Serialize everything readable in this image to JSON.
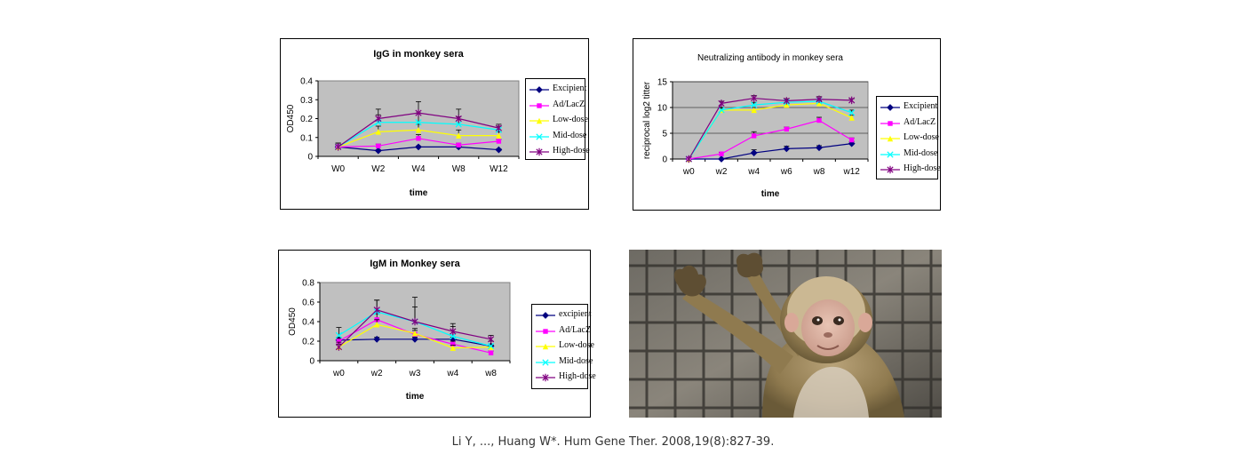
{
  "chart_data": [
    {
      "id": "igg",
      "type": "line",
      "title": "IgG in monkey sera",
      "xlabel": "time",
      "ylabel": "OD450",
      "categories": [
        "W0",
        "W2",
        "W4",
        "W8",
        "W12"
      ],
      "ylim": [
        0,
        0.4
      ],
      "yticks": [
        "0",
        "0.1",
        "0.2",
        "0.3",
        "0.4"
      ],
      "grid": false,
      "legend_position": "right",
      "series": [
        {
          "name": "Excipient",
          "color": "#000080",
          "marker": "diamond",
          "values": [
            0.05,
            0.03,
            0.05,
            0.05,
            0.035
          ],
          "errors": [
            0.01,
            0.005,
            0.005,
            0.005,
            0.005
          ]
        },
        {
          "name": "Ad/LacZ",
          "color": "#ff00ff",
          "marker": "square",
          "values": [
            0.05,
            0.055,
            0.095,
            0.06,
            0.08
          ],
          "errors": [
            0.01,
            0.01,
            0.02,
            0.01,
            0.01
          ]
        },
        {
          "name": "Low-dose",
          "color": "#ffff00",
          "marker": "triangle",
          "values": [
            0.05,
            0.13,
            0.14,
            0.11,
            0.11
          ],
          "errors": [
            0.02,
            0.03,
            0.03,
            0.03,
            0.02
          ]
        },
        {
          "name": "Mid-dose",
          "color": "#00ffff",
          "marker": "x",
          "values": [
            0.05,
            0.18,
            0.18,
            0.17,
            0.14
          ],
          "errors": [
            0.02,
            0.04,
            0.05,
            0.04,
            0.02
          ]
        },
        {
          "name": "High-dose",
          "color": "#800080",
          "marker": "star",
          "values": [
            0.05,
            0.2,
            0.23,
            0.2,
            0.15
          ],
          "errors": [
            0.02,
            0.05,
            0.06,
            0.05,
            0.02
          ]
        }
      ]
    },
    {
      "id": "nab",
      "type": "line",
      "title": "Neutralizing antibody in monkey sera",
      "xlabel": "time",
      "ylabel": "reciprocal log2 titter",
      "categories": [
        "w0",
        "w2",
        "w4",
        "w6",
        "w8",
        "w12"
      ],
      "ylim": [
        0,
        15
      ],
      "yticks": [
        "0",
        "5",
        "10",
        "15"
      ],
      "grid": true,
      "legend_position": "right",
      "series": [
        {
          "name": "Excipient",
          "color": "#000080",
          "marker": "diamond",
          "values": [
            0,
            0,
            1.2,
            2,
            2.2,
            3
          ],
          "errors": [
            0,
            0,
            0.6,
            0.5,
            0.4,
            0.4
          ]
        },
        {
          "name": "Ad/LacZ",
          "color": "#ff00ff",
          "marker": "square",
          "values": [
            0,
            1,
            4.5,
            5.8,
            7.5,
            3.7
          ],
          "errors": [
            0,
            0.3,
            0.8,
            0.4,
            0.6,
            0.4
          ]
        },
        {
          "name": "Low-dose",
          "color": "#ffff00",
          "marker": "triangle",
          "values": [
            0,
            9.5,
            9.5,
            10.5,
            10.8,
            8
          ],
          "errors": [
            0,
            0.4,
            0.5,
            0.4,
            0.5,
            0.5
          ]
        },
        {
          "name": "Mid-dose",
          "color": "#00ffff",
          "marker": "x",
          "values": [
            0,
            9.5,
            10.5,
            11,
            11.2,
            9
          ],
          "errors": [
            0,
            0.5,
            0.5,
            0.4,
            0.4,
            0.5
          ]
        },
        {
          "name": "High-dose",
          "color": "#800080",
          "marker": "star",
          "values": [
            0,
            10.8,
            11.8,
            11.3,
            11.6,
            11.4
          ],
          "errors": [
            0,
            0.4,
            0.5,
            0.4,
            0.5,
            0.3
          ]
        }
      ]
    },
    {
      "id": "igm",
      "type": "line",
      "title": "IgM in Monkey sera",
      "xlabel": "time",
      "ylabel": "OD450",
      "categories": [
        "w0",
        "w2",
        "w3",
        "w4",
        "w8"
      ],
      "ylim": [
        0,
        0.8
      ],
      "yticks": [
        "0",
        "0.2",
        "0.4",
        "0.6",
        "0.8"
      ],
      "grid": false,
      "legend_position": "right",
      "series": [
        {
          "name": "excipient",
          "color": "#000080",
          "marker": "diamond",
          "values": [
            0.21,
            0.22,
            0.22,
            0.22,
            0.15
          ],
          "errors": [
            0.03,
            0.02,
            0.02,
            0.02,
            0.02
          ]
        },
        {
          "name": "Ad/LacZ",
          "color": "#ff00ff",
          "marker": "square",
          "values": [
            0.2,
            0.42,
            0.27,
            0.17,
            0.08
          ],
          "errors": [
            0.03,
            0.06,
            0.04,
            0.03,
            0.02
          ]
        },
        {
          "name": "Low-dose",
          "color": "#ffff00",
          "marker": "triangle",
          "values": [
            0.14,
            0.37,
            0.28,
            0.13,
            0.14
          ],
          "errors": [
            0.03,
            0.05,
            0.05,
            0.03,
            0.02
          ]
        },
        {
          "name": "Mid-dose",
          "color": "#00ffff",
          "marker": "x",
          "values": [
            0.26,
            0.5,
            0.4,
            0.25,
            0.15
          ],
          "errors": [
            0.08,
            0.12,
            0.25,
            0.1,
            0.05
          ]
        },
        {
          "name": "High-dose",
          "color": "#800080",
          "marker": "star",
          "values": [
            0.14,
            0.52,
            0.4,
            0.3,
            0.22
          ],
          "errors": [
            0.05,
            0.1,
            0.15,
            0.08,
            0.04
          ]
        }
      ]
    }
  ],
  "photo": {
    "subject": "macaque-monkey"
  },
  "citation": "Li Y, ..., Huang W*. Hum Gene Ther. 2008,19(8):827-39."
}
